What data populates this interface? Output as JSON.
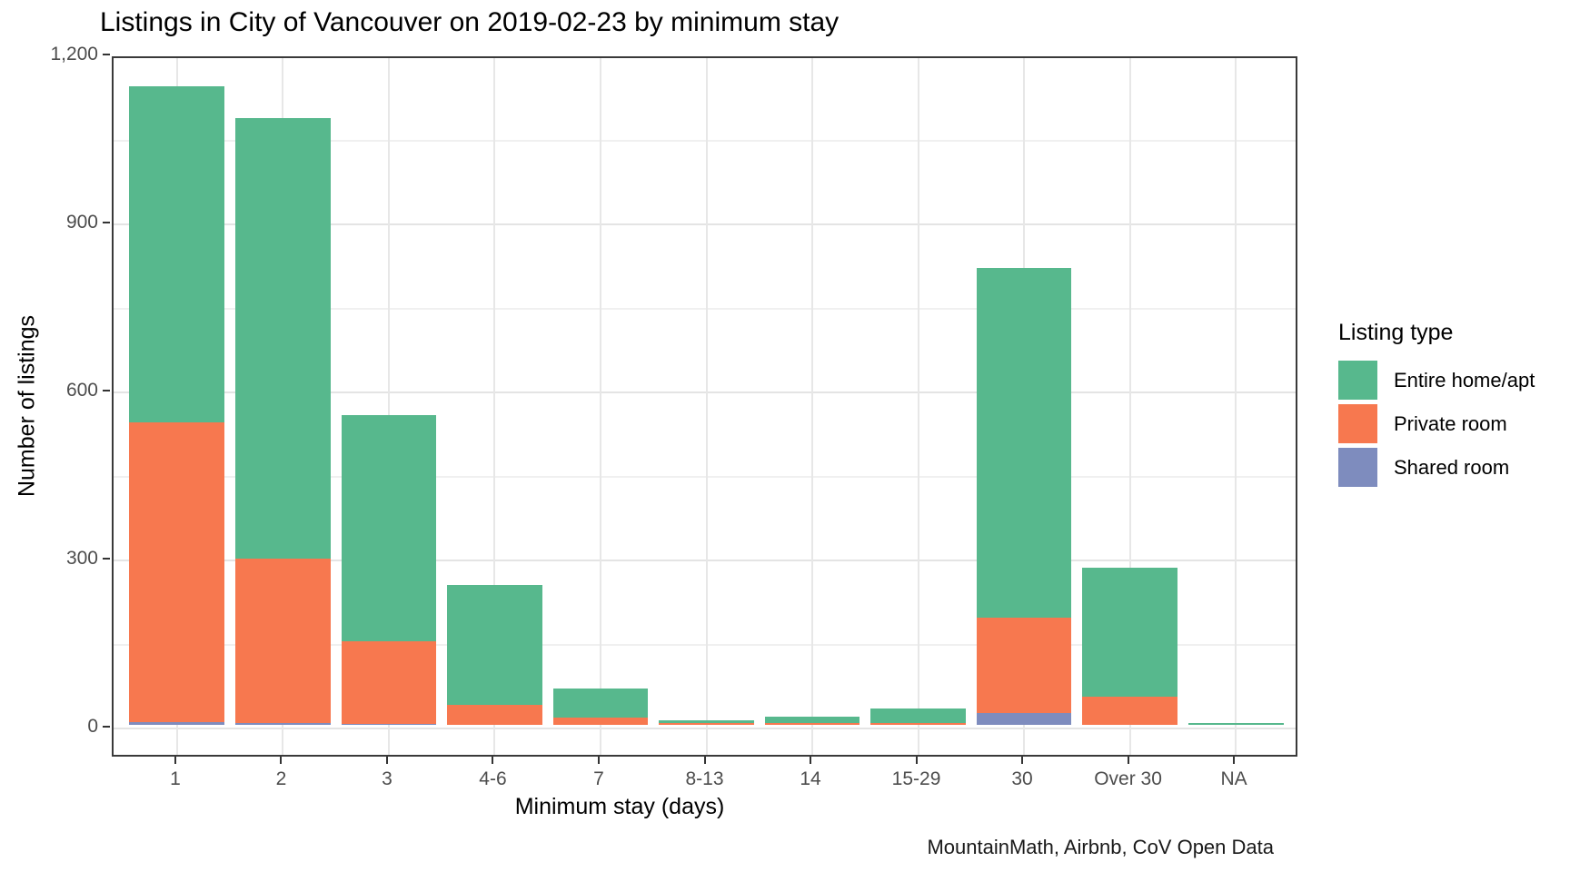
{
  "title": "Listings in City of Vancouver on 2019-02-23 by minimum stay",
  "caption": "MountainMath, Airbnb, CoV Open Data",
  "legend": {
    "title": "Listing type",
    "items": [
      {
        "label": "Entire home/apt",
        "color": "#57b88d"
      },
      {
        "label": "Private room",
        "color": "#f7784f"
      },
      {
        "label": "Shared room",
        "color": "#7e8cbe"
      }
    ]
  },
  "chart_data": {
    "type": "bar",
    "stacked": true,
    "title": "Listings in City of Vancouver on 2019-02-23 by minimum stay",
    "xlabel": "Minimum stay (days)",
    "ylabel": "Number of listings",
    "categories": [
      "1",
      "2",
      "3",
      "4-6",
      "7",
      "8-13",
      "14",
      "15-29",
      "30",
      "Over 30",
      "NA"
    ],
    "series": [
      {
        "name": "Shared room",
        "color": "#7e8cbe",
        "values": [
          5,
          3,
          2,
          0,
          0,
          0,
          0,
          0,
          21,
          0,
          0
        ]
      },
      {
        "name": "Private room",
        "color": "#f7784f",
        "values": [
          535,
          293,
          148,
          36,
          13,
          3,
          3,
          4,
          171,
          51,
          0
        ]
      },
      {
        "name": "Entire home/apt",
        "color": "#57b88d",
        "values": [
          600,
          788,
          403,
          214,
          52,
          5,
          12,
          26,
          623,
          230,
          4
        ]
      }
    ],
    "stack_order_bottom_to_top": [
      "Shared room",
      "Private room",
      "Entire home/apt"
    ],
    "totals": [
      1140,
      1084,
      553,
      250,
      65,
      8,
      15,
      30,
      815,
      281,
      4
    ],
    "y_ticks": [
      "0",
      "300",
      "600",
      "900",
      "1,200"
    ],
    "y_tick_values": [
      0,
      300,
      600,
      900,
      1200
    ],
    "y_minor_values": [
      150,
      450,
      750,
      1050
    ],
    "ylim": [
      0,
      1200
    ],
    "grid": true,
    "legend_position": "right"
  }
}
